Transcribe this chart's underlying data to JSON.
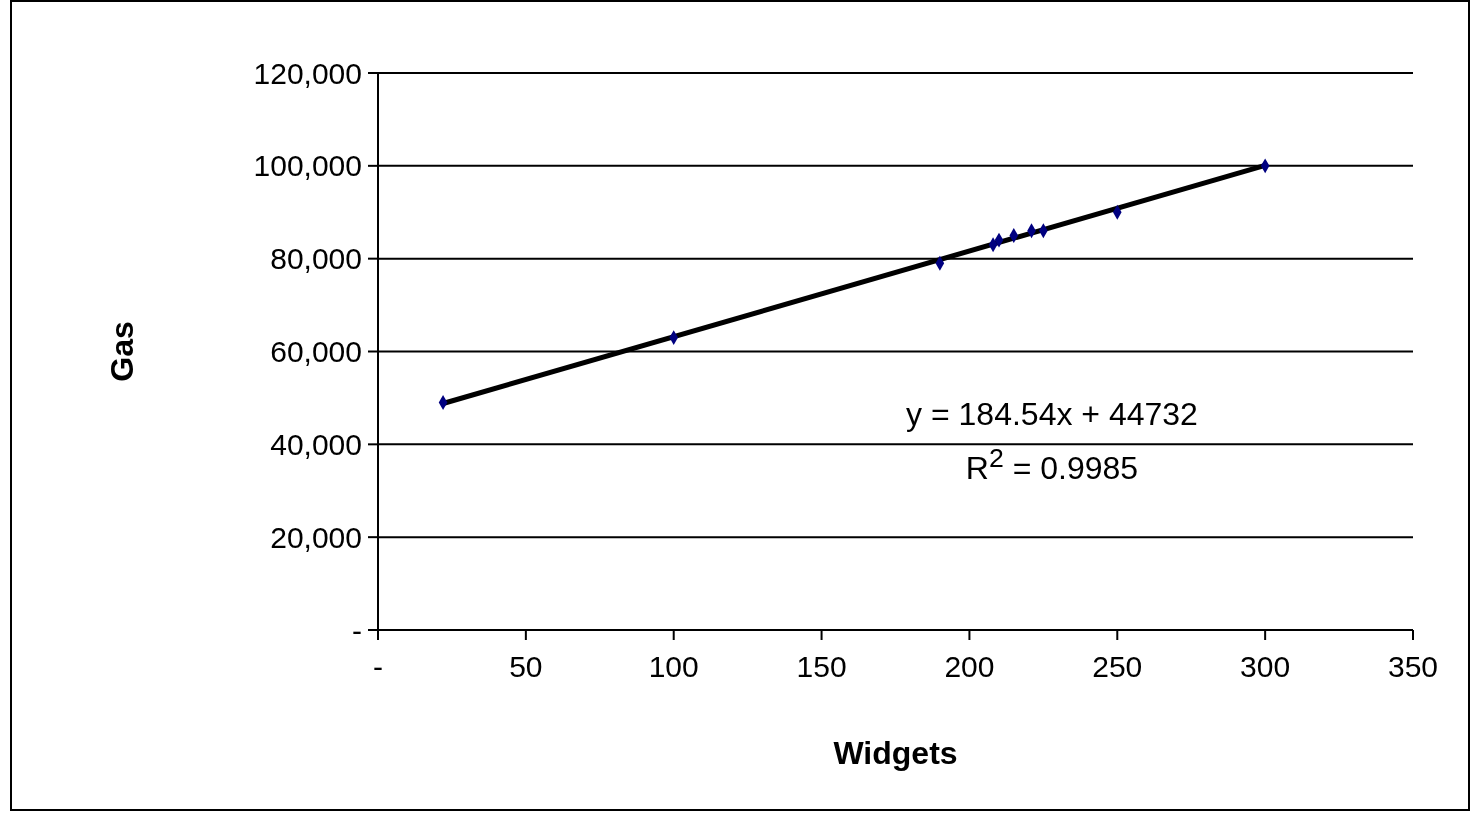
{
  "chart_data": {
    "type": "scatter",
    "xlabel": "Widgets",
    "ylabel": "Gas",
    "x": [
      22,
      100,
      190,
      208,
      210,
      215,
      221,
      225,
      250,
      300
    ],
    "series": [
      {
        "color": "#000080",
        "values": [
          49000,
          63000,
          79000,
          83000,
          84000,
          85000,
          86000,
          86000,
          90000,
          100000
        ],
        "marker": "diamond"
      },
      {
        "type": "line",
        "color": "#000000",
        "x": [
          22,
          300
        ],
        "values": [
          48800,
          100100
        ],
        "marker": "none",
        "line_style": "solid"
      }
    ],
    "xlim": [
      0,
      350
    ],
    "xticks": [
      {
        "value": 0,
        "label": "-"
      },
      50,
      100,
      150,
      200,
      250,
      300,
      350
    ],
    "ylim": [
      0,
      120000
    ],
    "yticks": [
      {
        "value": 0,
        "label": "-"
      },
      {
        "value": 20000,
        "label": "20,000"
      },
      {
        "value": 40000,
        "label": "40,000"
      },
      {
        "value": 60000,
        "label": "60,000"
      },
      {
        "value": 80000,
        "label": "80,000"
      },
      {
        "value": 100000,
        "label": "100,000"
      },
      {
        "value": 120000,
        "label": "120,000"
      }
    ],
    "grid": "y",
    "legend": false,
    "annotations": [
      "y = 184.54x + 44732",
      "R$^{2}$ = 0.9985"
    ]
  }
}
